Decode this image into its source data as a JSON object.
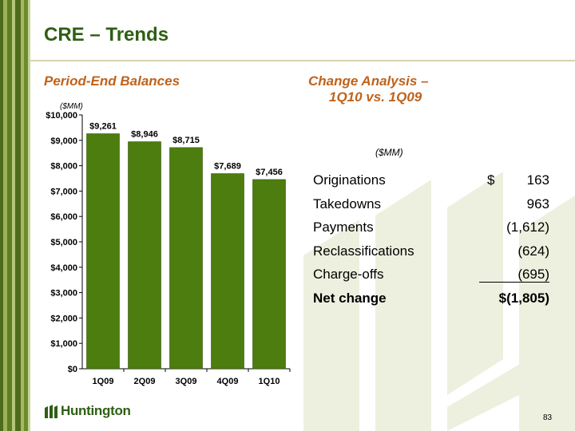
{
  "slide": {
    "title": "CRE – Trends",
    "page_number": "83"
  },
  "left": {
    "heading": "Period-End Balances",
    "unit": "($MM)"
  },
  "right": {
    "heading_line1": "Change Analysis –",
    "heading_line2": "1Q10 vs. 1Q09",
    "unit": "($MM)",
    "rows": [
      {
        "label": "Originations",
        "currency": "$",
        "value": "163",
        "bold": false
      },
      {
        "label": "Takedowns",
        "currency": "",
        "value": "963",
        "bold": false
      },
      {
        "label": "Payments",
        "currency": "",
        "value": "(1,612)",
        "bold": false
      },
      {
        "label": "Reclassifications",
        "currency": "",
        "value": "(624)",
        "bold": false
      },
      {
        "label": "Charge-offs",
        "currency": "",
        "value": "(695)",
        "bold": false
      },
      {
        "label": "Net change",
        "currency": "",
        "value": "$(1,805)",
        "bold": true
      }
    ]
  },
  "logo": {
    "text": "Huntington",
    "icon": "huntington-logo-icon"
  },
  "colors": {
    "bar": "#4d7c0f",
    "title": "#2e5e14",
    "heading": "#c0621b",
    "stripe_dark": "#4e6b1a",
    "stripe_light": "#9fb05a"
  },
  "chart_data": {
    "type": "bar",
    "categories": [
      "1Q09",
      "2Q09",
      "3Q09",
      "4Q09",
      "1Q10"
    ],
    "values": [
      9261,
      8946,
      8715,
      7689,
      7456
    ],
    "data_labels": [
      "$9,261",
      "$8,946",
      "$8,715",
      "$7,689",
      "$7,456"
    ],
    "y_ticks": [
      0,
      1000,
      2000,
      3000,
      4000,
      5000,
      6000,
      7000,
      8000,
      9000,
      10000
    ],
    "y_tick_labels": [
      "$0",
      "$1,000",
      "$2,000",
      "$3,000",
      "$4,000",
      "$5,000",
      "$6,000",
      "$7,000",
      "$8,000",
      "$9,000",
      "$10,000"
    ],
    "ylim": [
      0,
      10000
    ],
    "unit_label": "($MM)",
    "grid": false,
    "legend": "none"
  }
}
